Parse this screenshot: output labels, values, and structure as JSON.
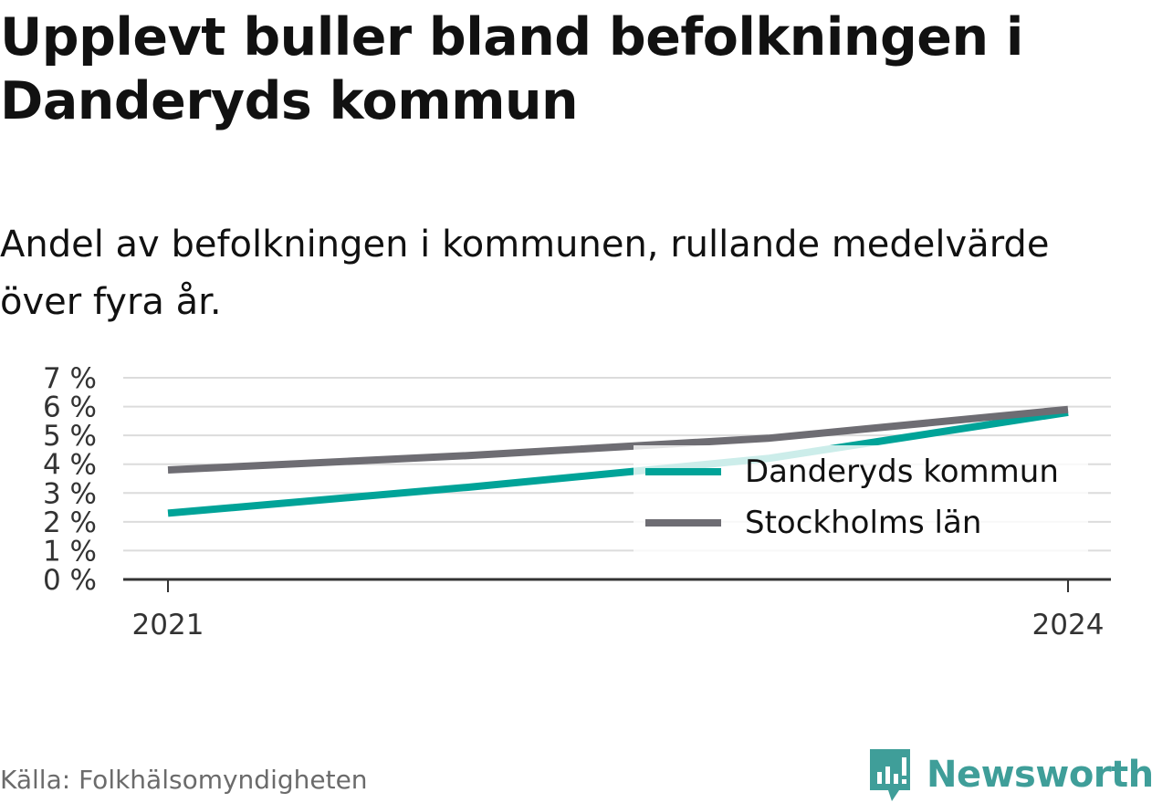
{
  "title": "Upplevt buller bland befolkningen i Danderyds kommun",
  "subtitle": "Andel av befolkningen i kommunen, rullande medelvärde över fyra år.",
  "source": "Källa: Folkhälsomyndigheten",
  "brand": {
    "name": "Newsworthy",
    "icon": "newsworthy-logo-icon",
    "color": "#3f9e99"
  },
  "chart_data": {
    "type": "line",
    "title": "Upplevt buller bland befolkningen i Danderyds kommun",
    "subtitle": "Andel av befolkningen i kommunen, rullande medelvärde över fyra år.",
    "xlabel": "",
    "ylabel": "",
    "x": [
      2021,
      2022,
      2023,
      2024
    ],
    "x_tick_labels": [
      "2021",
      "2024"
    ],
    "y_ticks": [
      0,
      1,
      2,
      3,
      4,
      5,
      6,
      7
    ],
    "y_tick_labels": [
      "0 %",
      "1 %",
      "2 %",
      "3 %",
      "4 %",
      "5 %",
      "6 %",
      "7 %"
    ],
    "ylim": [
      0,
      7
    ],
    "grid": true,
    "legend_position": "bottom-right",
    "series": [
      {
        "name": "Danderyds kommun",
        "color": "#00a398",
        "values": [
          2.3,
          3.2,
          4.2,
          5.8
        ]
      },
      {
        "name": "Stockholms län",
        "color": "#6e6d73",
        "values": [
          3.8,
          4.3,
          4.9,
          5.9
        ]
      }
    ]
  }
}
